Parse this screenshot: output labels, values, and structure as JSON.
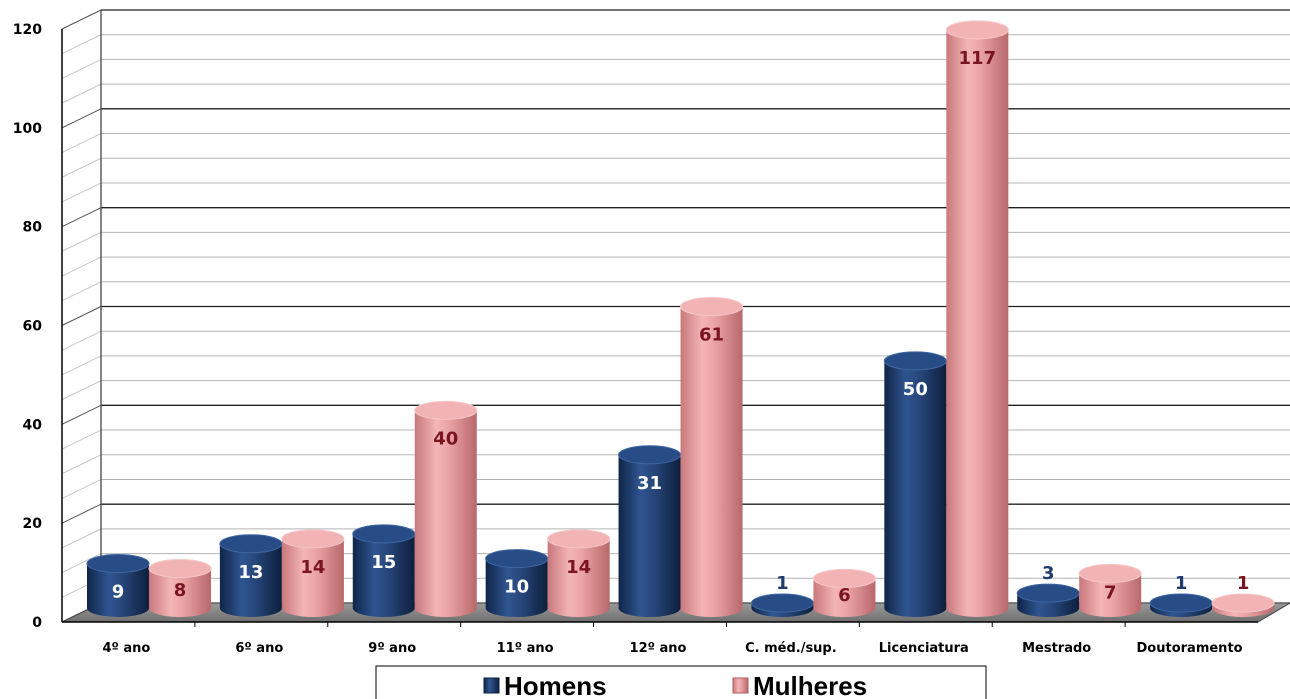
{
  "chart_data": {
    "type": "bar",
    "categories": [
      "4º ano",
      "6º ano",
      "9º ano",
      "11º ano",
      "12º ano",
      "C. méd./sup.",
      "Licenciatura",
      "Mestrado",
      "Doutoramento"
    ],
    "series": [
      {
        "name": "Homens",
        "values": [
          9,
          13,
          15,
          10,
          31,
          1,
          50,
          3,
          1
        ],
        "color": "#1f3c6e",
        "label_color_inside": "#ffffff",
        "label_color_outside": "#1f3c6e"
      },
      {
        "name": "Mulheres",
        "values": [
          8,
          14,
          40,
          14,
          61,
          6,
          117,
          7,
          1
        ],
        "color": "#e5999b",
        "label_color_inside": "#7a1520",
        "label_color_outside": "#7a1520"
      }
    ],
    "ylim": [
      0,
      120
    ],
    "yticks": [
      0,
      20,
      40,
      60,
      80,
      100,
      120
    ],
    "grid": true,
    "legend_position": "bottom-center",
    "style": "3d-cylinder"
  }
}
